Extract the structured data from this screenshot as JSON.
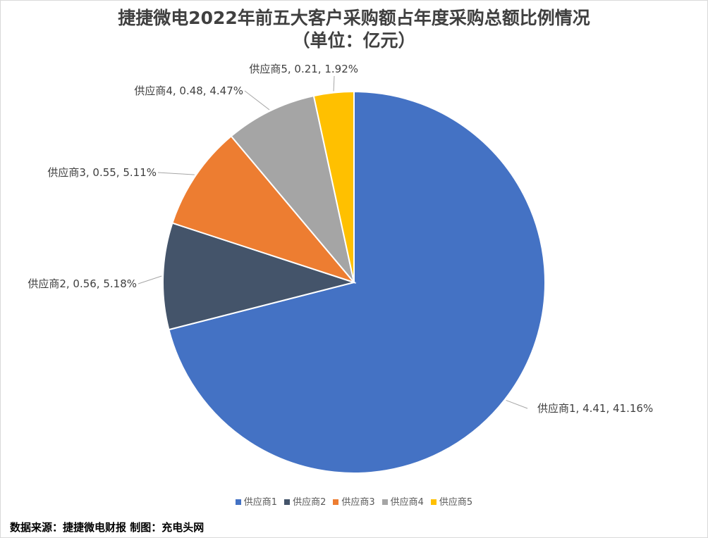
{
  "chart_data": {
    "type": "pie",
    "title": "捷捷微电2022年前五大客户采购额占年度采购总额比例情况",
    "subtitle": "（单位：亿元）",
    "categories": [
      "供应商1",
      "供应商2",
      "供应商3",
      "供应商4",
      "供应商5"
    ],
    "values": [
      4.41,
      0.56,
      0.55,
      0.48,
      0.21
    ],
    "percent_labels": [
      "41.16%",
      "5.18%",
      "5.11%",
      "4.47%",
      "1.92%"
    ],
    "data_labels": [
      "供应商1, 4.41, 41.16%",
      "供应商2, 0.56, 5.18%",
      "供应商3, 0.55, 5.11%",
      "供应商4, 0.48, 4.47%",
      "供应商5, 0.21, 1.92%"
    ],
    "colors": [
      "#4472C4",
      "#44546A",
      "#ED7D31",
      "#A5A5A5",
      "#FFC000"
    ],
    "legend_position": "bottom"
  },
  "footer": "数据来源：捷捷微电财报  制图：充电头网"
}
